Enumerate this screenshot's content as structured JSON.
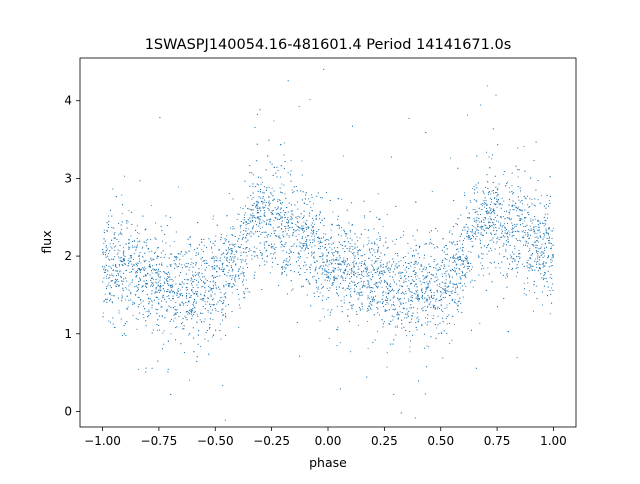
{
  "chart_data": {
    "type": "scatter",
    "title": "1SWASPJ140054.16-481601.4 Period 14141671.0s",
    "xlabel": "phase",
    "ylabel": "flux",
    "xlim": [
      -1.1,
      1.1
    ],
    "ylim": [
      -0.2,
      4.55
    ],
    "xticks": [
      -1.0,
      -0.75,
      -0.5,
      -0.25,
      0.0,
      0.25,
      0.5,
      0.75,
      1.0
    ],
    "xtick_labels": [
      "−1.00",
      "−0.75",
      "−0.50",
      "−0.25",
      "0.00",
      "0.25",
      "0.50",
      "0.75",
      "1.00"
    ],
    "yticks": [
      0,
      1,
      2,
      3,
      4
    ],
    "ytick_labels": [
      "0",
      "1",
      "2",
      "3",
      "4"
    ],
    "grid": false,
    "legend": "none",
    "point_color": "#1f77b4",
    "series": [
      {
        "x": [
          -1.0,
          -0.95,
          -0.9,
          -0.85,
          -0.8,
          -0.75,
          -0.7,
          -0.65,
          -0.6,
          -0.55,
          -0.5,
          -0.45,
          -0.4,
          -0.35,
          -0.3,
          -0.25,
          -0.2,
          -0.15,
          -0.1,
          -0.05,
          0.0,
          0.05,
          0.1,
          0.15,
          0.2,
          0.25,
          0.3,
          0.35,
          0.4,
          0.45,
          0.5,
          0.55,
          0.6,
          0.65,
          0.7,
          0.75,
          0.8,
          0.85,
          0.9,
          0.95,
          1.0
        ],
        "y": [
          1.85,
          1.82,
          1.8,
          1.75,
          1.7,
          1.68,
          1.6,
          1.55,
          1.6,
          1.62,
          1.65,
          1.75,
          1.95,
          2.35,
          2.45,
          2.5,
          2.4,
          2.3,
          2.2,
          2.1,
          1.95,
          1.85,
          1.8,
          1.75,
          1.7,
          1.65,
          1.6,
          1.55,
          1.55,
          1.6,
          1.65,
          1.75,
          1.95,
          2.35,
          2.45,
          2.5,
          2.4,
          2.3,
          2.2,
          2.1,
          1.95
        ]
      }
    ]
  }
}
